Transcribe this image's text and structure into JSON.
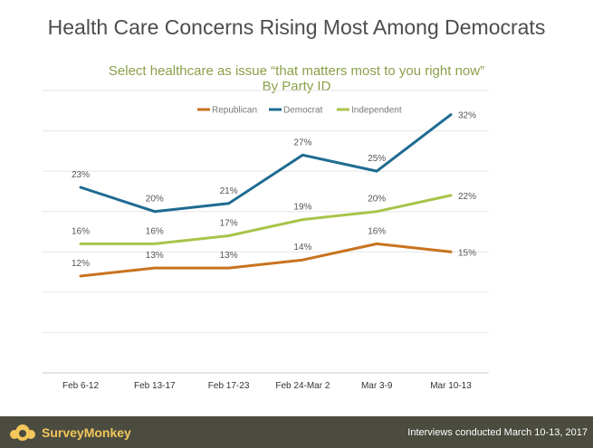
{
  "page": {
    "title": "Health Care Concerns Rising Most Among Democrats"
  },
  "chart_data": {
    "type": "line",
    "title": "Select healthcare as issue “that matters most to you right now”",
    "subtitle": "By Party ID",
    "categories": [
      "Feb 6-12",
      "Feb 13-17",
      "Feb 17-23",
      "Feb 24-Mar 2",
      "Mar 3-9",
      "Mar 10-13"
    ],
    "series": [
      {
        "name": "Republican",
        "color": "#c8731f",
        "values": [
          12,
          13,
          13,
          14,
          16,
          15
        ],
        "labels": [
          "12%",
          "13%",
          "13%",
          "14%",
          "16%",
          "15%"
        ]
      },
      {
        "name": "Democrat",
        "color": "#1f6b91",
        "values": [
          23,
          20,
          21,
          27,
          25,
          32
        ],
        "labels": [
          "23%",
          "20%",
          "21%",
          "27%",
          "25%",
          "32%"
        ]
      },
      {
        "name": "Independent",
        "color": "#a9c44b",
        "values": [
          16,
          16,
          17,
          19,
          20,
          22
        ],
        "labels": [
          "16%",
          "16%",
          "17%",
          "19%",
          "20%",
          "22%"
        ]
      }
    ],
    "ylim": [
      0,
      35
    ],
    "grid": true,
    "legend": "top-center"
  },
  "footer": {
    "brand": "SurveyMonkey",
    "note": "Interviews conducted March 10-13, 2017",
    "logo_icon": "surveymonkey-logo-icon"
  }
}
